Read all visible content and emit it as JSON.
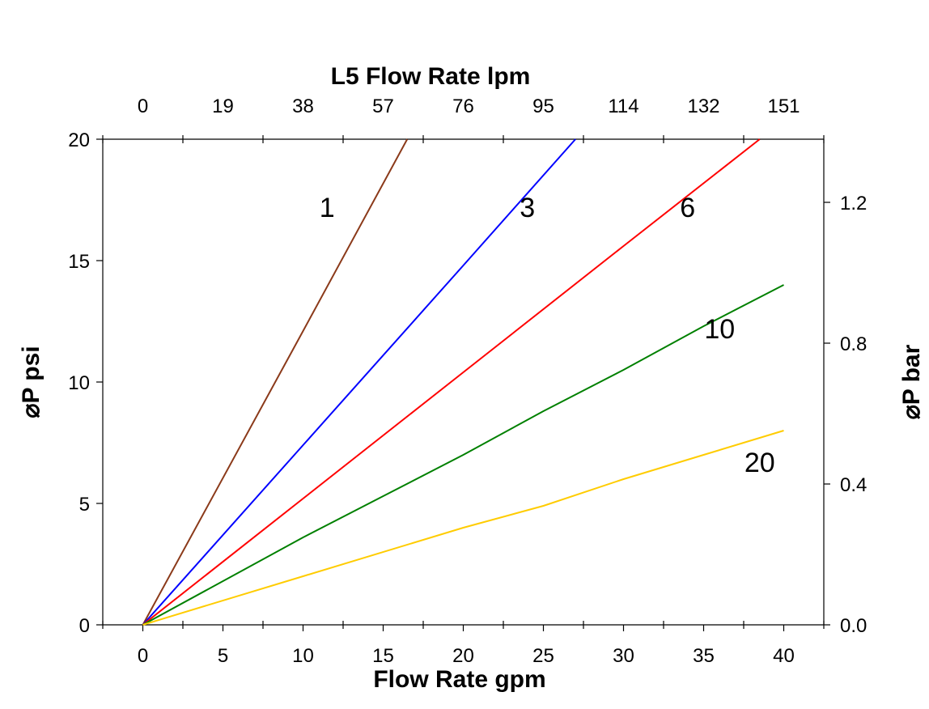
{
  "chart_data": {
    "type": "line",
    "title": "L5  Flow Rate lpm",
    "xlabel": "Flow Rate gpm",
    "ylabel": "⌀P psi",
    "y2label": "⌀P bar",
    "xlim": [
      -2.5,
      42.5
    ],
    "ylim": [
      0,
      20
    ],
    "x_ticks": [
      0,
      5,
      10,
      15,
      20,
      25,
      30,
      35,
      40
    ],
    "y_ticks": [
      0,
      5,
      10,
      15,
      20
    ],
    "top_ticks": [
      "0",
      "19",
      "38",
      "57",
      "76",
      "95",
      "114",
      "132",
      "151"
    ],
    "right_ticks": [
      {
        "label": "0.0",
        "value": 0.0
      },
      {
        "label": "0.4",
        "value": 0.4
      },
      {
        "label": "0.8",
        "value": 0.8
      },
      {
        "label": "1.2",
        "value": 1.2
      }
    ],
    "right_scale_psi_per_unit": 14.5,
    "grid": false,
    "series": [
      {
        "name": "1",
        "color": "#8B3A1A",
        "x": [
          0,
          10,
          16.5
        ],
        "y": [
          0,
          12.1,
          20
        ],
        "label_at": [
          11.5,
          16.8
        ]
      },
      {
        "name": "3",
        "color": "#0000FF",
        "x": [
          0,
          10,
          20,
          27
        ],
        "y": [
          0,
          7.4,
          14.8,
          20
        ],
        "label_at": [
          24,
          16.8
        ]
      },
      {
        "name": "6",
        "color": "#FF0000",
        "x": [
          0,
          10,
          20,
          30,
          38.5
        ],
        "y": [
          0,
          5.2,
          10.4,
          15.6,
          20
        ],
        "label_at": [
          34,
          16.8
        ]
      },
      {
        "name": "10",
        "color": "#008000",
        "x": [
          0,
          10,
          15,
          20,
          25,
          30,
          35,
          40
        ],
        "y": [
          0,
          3.6,
          5.3,
          7.0,
          8.8,
          10.5,
          12.3,
          14.0
        ],
        "label_at": [
          36,
          11.8
        ]
      },
      {
        "name": "20",
        "color": "#FFCC00",
        "x": [
          0,
          10,
          20,
          25,
          30,
          35,
          40
        ],
        "y": [
          0,
          2.0,
          4.0,
          4.9,
          6.0,
          7.0,
          8.0
        ],
        "label_at": [
          38.5,
          6.3
        ]
      }
    ]
  }
}
